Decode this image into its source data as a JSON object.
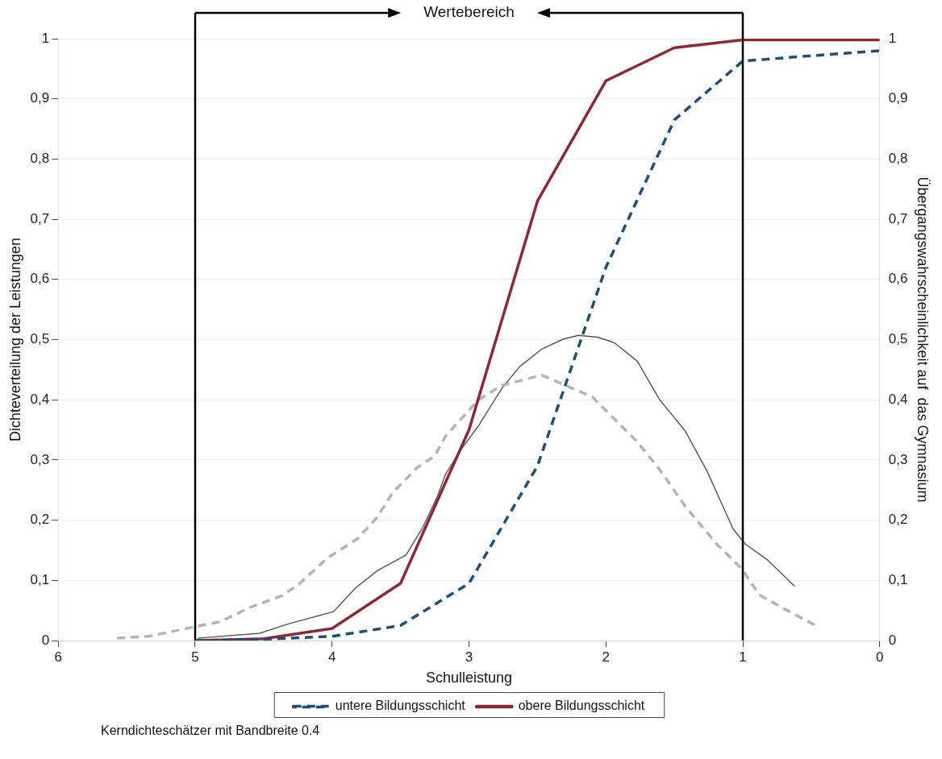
{
  "chart_data": {
    "type": "line",
    "xlabel": "Schulleistung",
    "ylabel": "Dichteverteilung der Leistungen",
    "y2label": "Übergangswahrscheinlichkeit auf  das Gymnasium",
    "xlim": [
      6,
      0
    ],
    "xticks": [
      6,
      5,
      4,
      3,
      2,
      1,
      0
    ],
    "ylim": [
      0,
      1
    ],
    "yticks": [
      0,
      {
        "value": 0.1,
        "label": "0,1"
      },
      {
        "value": 0.2,
        "label": "0,2"
      },
      {
        "value": 0.3,
        "label": "0,3"
      },
      {
        "value": 0.4,
        "label": "0,4"
      },
      {
        "value": 0.5,
        "label": "0,5"
      },
      {
        "value": 0.6,
        "label": "0,6"
      },
      {
        "value": 0.7,
        "label": "0,7"
      },
      {
        "value": 0.8,
        "label": "0,8"
      },
      {
        "value": 0.9,
        "label": "0,9"
      },
      1
    ],
    "y2lim": [
      0,
      1
    ],
    "y2ticks": [
      0,
      {
        "value": 0.1,
        "label": "0,1"
      },
      {
        "value": 0.2,
        "label": "0,2"
      },
      {
        "value": 0.3,
        "label": "0,3"
      },
      {
        "value": 0.4,
        "label": "0,4"
      },
      {
        "value": 0.5,
        "label": "0,5"
      },
      {
        "value": 0.6,
        "label": "0,6"
      },
      {
        "value": 0.7,
        "label": "0,7"
      },
      {
        "value": 0.8,
        "label": "0,8"
      },
      {
        "value": 0.9,
        "label": "0,9"
      },
      1
    ],
    "series": [
      {
        "name": "untere Bildungsschicht",
        "color": "#1f4e79",
        "line_style": "dashed",
        "x": [
          5,
          4.5,
          4,
          3.5,
          3,
          2.5,
          2,
          1.5,
          1,
          0
        ],
        "values": [
          0,
          0.002,
          0.007,
          0.025,
          0.095,
          0.29,
          0.62,
          0.865,
          0.963,
          0.98
        ]
      },
      {
        "name": "obere Bildungsschicht",
        "color": "#8b2a35",
        "line_style": "solid",
        "x": [
          5,
          4.5,
          4,
          3.5,
          3,
          2.5,
          2,
          1.5,
          1,
          0
        ],
        "values": [
          0,
          0.003,
          0.02,
          0.095,
          0.35,
          0.73,
          0.93,
          0.985,
          0.998,
          0.998
        ]
      },
      {
        "color": "#b4b4b4",
        "line_style": "dashed",
        "x": [
          5.57,
          5.34,
          4.98,
          4.82,
          4.59,
          4.37,
          4.24,
          4.04,
          3.81,
          3.67,
          3.56,
          3.38,
          3.25,
          3.17,
          2.93,
          2.76,
          2.47,
          2.1,
          1.77,
          1.61,
          1.42,
          1.19,
          1.01,
          0.88,
          0.7,
          0.45
        ],
        "values": [
          0.004,
          0.007,
          0.024,
          0.031,
          0.056,
          0.074,
          0.094,
          0.136,
          0.17,
          0.205,
          0.245,
          0.287,
          0.307,
          0.34,
          0.4,
          0.424,
          0.441,
          0.405,
          0.33,
          0.285,
          0.223,
          0.16,
          0.12,
          0.076,
          0.053,
          0.023
        ]
      },
      {
        "color": "#555555",
        "line_style": "solid",
        "x": [
          4.98,
          4.53,
          4.33,
          3.99,
          3.83,
          3.67,
          3.46,
          3.34,
          3.23,
          3.17,
          3.05,
          2.93,
          2.76,
          2.63,
          2.47,
          2.31,
          2.2,
          2.06,
          1.94,
          1.77,
          1.61,
          1.42,
          1.26,
          1.07,
          0.98,
          0.82,
          0.62
        ],
        "values": [
          0.004,
          0.012,
          0.027,
          0.048,
          0.087,
          0.116,
          0.142,
          0.187,
          0.24,
          0.277,
          0.32,
          0.357,
          0.419,
          0.455,
          0.484,
          0.501,
          0.507,
          0.504,
          0.495,
          0.464,
          0.401,
          0.348,
          0.281,
          0.185,
          0.16,
          0.134,
          0.09
        ]
      }
    ],
    "ref_lines": [
      {
        "axis": "x",
        "value": 5,
        "label": null
      },
      {
        "axis": "x",
        "value": 1,
        "label": null
      }
    ],
    "annotations": [
      "Wertebereich",
      "Kerndichteschätzer mit Bandbreite 0.4"
    ],
    "grid": "y",
    "legend": "bottom",
    "marker": "none"
  }
}
